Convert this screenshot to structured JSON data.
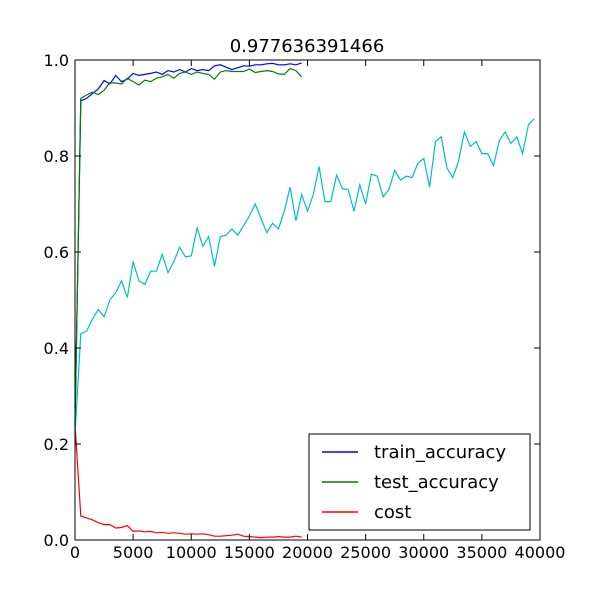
{
  "chart_data": {
    "type": "line",
    "title": "0.977636391466",
    "xlabel": "",
    "ylabel": "",
    "xlim": [
      0,
      40000
    ],
    "ylim": [
      0.0,
      1.0
    ],
    "xticks": [
      "0",
      "5000",
      "10000",
      "15000",
      "20000",
      "25000",
      "30000",
      "35000",
      "40000"
    ],
    "yticks": [
      "0.0",
      "0.2",
      "0.4",
      "0.6",
      "0.8",
      "1.0"
    ],
    "grid": false,
    "legend_position": "bottom-right",
    "series": [
      {
        "name": "train_accuracy",
        "color": "#0000ff",
        "x": [
          0,
          500,
          1000,
          1500,
          2000,
          2500,
          3000,
          3500,
          4000,
          4500,
          5000,
          5500,
          6000,
          6500,
          7000,
          7500,
          8000,
          8500,
          9000,
          9500,
          10000,
          10500,
          11000,
          11500,
          12000,
          12500,
          13000,
          13500,
          14000,
          14500,
          15000,
          15500,
          16000,
          16500,
          17000,
          17500,
          18000,
          18500,
          19000,
          19500
        ],
        "y": [
          0.24,
          0.915,
          0.92,
          0.93,
          0.94,
          0.957,
          0.95,
          0.968,
          0.955,
          0.96,
          0.972,
          0.968,
          0.97,
          0.972,
          0.975,
          0.97,
          0.978,
          0.975,
          0.98,
          0.975,
          0.982,
          0.978,
          0.98,
          0.978,
          0.988,
          0.99,
          0.985,
          0.98,
          0.984,
          0.988,
          0.987,
          0.99,
          0.99,
          0.992,
          0.993,
          0.99,
          0.99,
          0.992,
          0.99,
          0.994
        ]
      },
      {
        "name": "test_accuracy",
        "color": "#008000",
        "x": [
          0,
          500,
          1000,
          1500,
          2000,
          2500,
          3000,
          3500,
          4000,
          4500,
          5000,
          5500,
          6000,
          6500,
          7000,
          7500,
          8000,
          8500,
          9000,
          9500,
          10000,
          10500,
          11000,
          11500,
          12000,
          12500,
          13000,
          13500,
          14000,
          14500,
          15000,
          15500,
          16000,
          16500,
          17000,
          17500,
          18000,
          18500,
          19000,
          19500
        ],
        "y": [
          0.24,
          0.92,
          0.927,
          0.933,
          0.928,
          0.937,
          0.953,
          0.952,
          0.95,
          0.962,
          0.955,
          0.948,
          0.958,
          0.955,
          0.962,
          0.965,
          0.97,
          0.962,
          0.972,
          0.975,
          0.97,
          0.975,
          0.972,
          0.97,
          0.96,
          0.975,
          0.978,
          0.976,
          0.976,
          0.976,
          0.981,
          0.974,
          0.976,
          0.978,
          0.976,
          0.971,
          0.97,
          0.982,
          0.978,
          0.965
        ]
      },
      {
        "name": "cost",
        "color": "#ff0000",
        "x": [
          0,
          500,
          1000,
          1500,
          2000,
          2500,
          3000,
          3500,
          4000,
          4500,
          5000,
          5500,
          6000,
          6500,
          7000,
          7500,
          8000,
          8500,
          9000,
          9500,
          10000,
          10500,
          11000,
          11500,
          12000,
          12500,
          13000,
          13500,
          14000,
          14500,
          15000,
          15500,
          16000,
          16500,
          17000,
          17500,
          18000,
          18500,
          19000,
          19500
        ],
        "y": [
          0.24,
          0.05,
          0.046,
          0.042,
          0.036,
          0.032,
          0.032,
          0.025,
          0.026,
          0.03,
          0.018,
          0.019,
          0.017,
          0.018,
          0.015,
          0.016,
          0.014,
          0.015,
          0.014,
          0.012,
          0.013,
          0.012,
          0.013,
          0.011,
          0.008,
          0.008,
          0.009,
          0.01,
          0.012,
          0.008,
          0.007,
          0.006,
          0.005,
          0.006,
          0.006,
          0.007,
          0.006,
          0.006,
          0.008,
          0.006
        ]
      },
      {
        "name": "",
        "color": "#00bfbf",
        "x": [
          0,
          500,
          1000,
          1500,
          2000,
          2500,
          3000,
          3500,
          4000,
          4500,
          5000,
          5500,
          6000,
          6500,
          7000,
          7500,
          8000,
          8500,
          9000,
          9500,
          10000,
          10500,
          11000,
          11500,
          12000,
          12500,
          13000,
          13500,
          14000,
          14500,
          15000,
          15500,
          16000,
          16500,
          17000,
          17500,
          18000,
          18500,
          19000,
          19500,
          20000,
          20500,
          21000,
          21500,
          22000,
          22500,
          23000,
          23500,
          24000,
          24500,
          25000,
          25500,
          26000,
          26500,
          27000,
          27500,
          28000,
          28500,
          29000,
          29500,
          30000,
          30500,
          31000,
          31500,
          32000,
          32500,
          33000,
          33500,
          34000,
          34500,
          35000,
          35500,
          36000,
          36500,
          37000,
          37500,
          38000,
          38500,
          39000,
          39500
        ],
        "y": [
          0.22,
          0.43,
          0.435,
          0.46,
          0.48,
          0.465,
          0.5,
          0.515,
          0.54,
          0.505,
          0.58,
          0.54,
          0.532,
          0.56,
          0.56,
          0.595,
          0.557,
          0.58,
          0.61,
          0.59,
          0.592,
          0.65,
          0.612,
          0.632,
          0.57,
          0.632,
          0.635,
          0.648,
          0.635,
          0.655,
          0.675,
          0.7,
          0.67,
          0.64,
          0.66,
          0.648,
          0.685,
          0.735,
          0.665,
          0.72,
          0.685,
          0.72,
          0.778,
          0.705,
          0.705,
          0.76,
          0.732,
          0.73,
          0.685,
          0.74,
          0.7,
          0.762,
          0.758,
          0.715,
          0.73,
          0.77,
          0.75,
          0.758,
          0.755,
          0.785,
          0.795,
          0.735,
          0.83,
          0.84,
          0.775,
          0.755,
          0.79,
          0.85,
          0.82,
          0.83,
          0.805,
          0.805,
          0.78,
          0.832,
          0.85,
          0.826,
          0.84,
          0.805,
          0.865,
          0.878
        ]
      }
    ]
  }
}
